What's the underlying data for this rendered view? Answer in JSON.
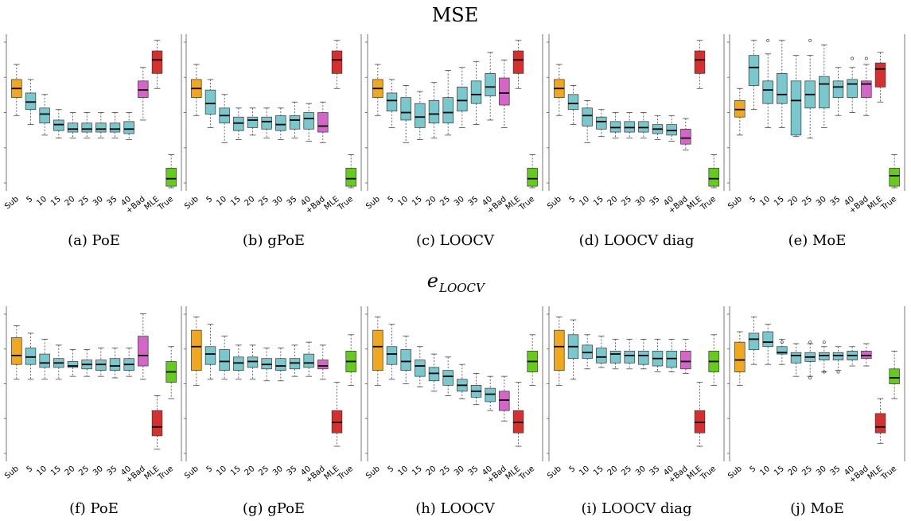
{
  "figure": {
    "row_titles": [
      "MSE",
      "e",
      "LOOCV"
    ],
    "categories": [
      "Sub",
      "5",
      "10",
      "15",
      "20",
      "25",
      "30",
      "35",
      "40",
      "+Bad",
      "MLE",
      "True"
    ],
    "colors": {
      "sub": "#F0A81E",
      "agg": "#78C8CD",
      "bad": "#D665C8",
      "mle": "#D6302E",
      "true": "#66CC1C",
      "median": "#000000",
      "whisker": "#444444",
      "frame": "#777777"
    }
  },
  "captions": [
    "(a) PoE",
    "(b) gPoE",
    "(c) LOOCV",
    "(d) LOOCV diag",
    "(e) MoE",
    "(f) PoE",
    "(g) gPoE",
    "(h) LOOCV",
    "(i) LOOCV diag",
    "(j) MoE"
  ],
  "chart_data": [
    {
      "type": "box",
      "row": "MSE",
      "title": "(a) PoE",
      "ylim": [
        0,
        100
      ],
      "categories": [
        "Sub",
        "5",
        "10",
        "15",
        "20",
        "25",
        "30",
        "35",
        "40",
        "+Bad",
        "MLE",
        "True"
      ],
      "boxes": [
        [
          48,
          60,
          66,
          72,
          82
        ],
        [
          42,
          52,
          57,
          63,
          72
        ],
        [
          35,
          43,
          49,
          53,
          62
        ],
        [
          33,
          38,
          42,
          45,
          52
        ],
        [
          33,
          37,
          39,
          43,
          50
        ],
        [
          33,
          37,
          39,
          43,
          50
        ],
        [
          33,
          37,
          39,
          43,
          50
        ],
        [
          33,
          37,
          39,
          43,
          50
        ],
        [
          32,
          36,
          39,
          44,
          50
        ],
        [
          45,
          60,
          65,
          71,
          80
        ],
        [
          66,
          76,
          85,
          91,
          98
        ],
        [
          0,
          1,
          6,
          13,
          22
        ]
      ],
      "outliers": []
    },
    {
      "type": "box",
      "row": "MSE",
      "title": "(b) gPoE",
      "ylim": [
        0,
        100
      ],
      "categories": [
        "Sub",
        "5",
        "10",
        "15",
        "20",
        "25",
        "30",
        "35",
        "40",
        "+Bad",
        "MLE",
        "True"
      ],
      "boxes": [
        [
          48,
          60,
          66,
          72,
          82
        ],
        [
          40,
          49,
          56,
          65,
          72
        ],
        [
          30,
          43,
          48,
          53,
          62
        ],
        [
          32,
          38,
          43,
          47,
          53
        ],
        [
          35,
          40,
          45,
          47,
          53
        ],
        [
          33,
          39,
          44,
          47,
          53
        ],
        [
          32,
          38,
          42,
          48,
          53
        ],
        [
          33,
          39,
          45,
          48,
          57
        ],
        [
          31,
          39,
          46,
          50,
          56
        ],
        [
          30,
          37,
          41,
          50,
          57
        ],
        [
          66,
          76,
          85,
          91,
          98
        ],
        [
          0,
          1,
          6,
          13,
          22
        ]
      ],
      "outliers": []
    },
    {
      "type": "box",
      "row": "MSE",
      "title": "(c) LOOCV",
      "ylim": [
        0,
        100
      ],
      "categories": [
        "Sub",
        "5",
        "10",
        "15",
        "20",
        "25",
        "30",
        "35",
        "40",
        "+Bad",
        "MLE",
        "True"
      ],
      "boxes": [
        [
          48,
          60,
          66,
          72,
          82
        ],
        [
          40,
          51,
          58,
          63,
          72
        ],
        [
          30,
          45,
          50,
          60,
          68
        ],
        [
          32,
          40,
          47,
          56,
          64
        ],
        [
          33,
          43,
          49,
          58,
          70
        ],
        [
          35,
          43,
          50,
          60,
          78
        ],
        [
          40,
          51,
          58,
          67,
          80
        ],
        [
          42,
          56,
          62,
          71,
          84
        ],
        [
          45,
          61,
          67,
          76,
          90
        ],
        [
          40,
          55,
          63,
          73,
          85
        ],
        [
          66,
          76,
          85,
          91,
          98
        ],
        [
          0,
          1,
          6,
          13,
          22
        ]
      ],
      "outliers": []
    },
    {
      "type": "box",
      "row": "MSE",
      "title": "(d) LOOCV diag",
      "ylim": [
        0,
        100
      ],
      "categories": [
        "Sub",
        "5",
        "10",
        "15",
        "20",
        "25",
        "30",
        "35",
        "40",
        "+Bad",
        "MLE",
        "True"
      ],
      "boxes": [
        [
          48,
          60,
          66,
          72,
          82
        ],
        [
          42,
          52,
          56,
          62,
          68
        ],
        [
          30,
          41,
          48,
          53,
          58
        ],
        [
          34,
          39,
          44,
          47,
          52
        ],
        [
          33,
          37,
          40,
          44,
          50
        ],
        [
          33,
          37,
          40,
          44,
          50
        ],
        [
          33,
          37,
          40,
          44,
          50
        ],
        [
          32,
          36,
          39,
          42,
          48
        ],
        [
          31,
          35,
          38,
          42,
          48
        ],
        [
          25,
          29,
          33,
          39,
          46
        ],
        [
          66,
          76,
          85,
          91,
          98
        ],
        [
          0,
          1,
          6,
          13,
          22
        ]
      ],
      "outliers": []
    },
    {
      "type": "box",
      "row": "MSE",
      "title": "(e) MoE",
      "ylim": [
        0,
        100
      ],
      "categories": [
        "Sub",
        "5",
        "10",
        "15",
        "20",
        "25",
        "30",
        "35",
        "40",
        "+Bad",
        "MLE",
        "True"
      ],
      "boxes": [
        [
          35,
          47,
          52,
          58,
          66
        ],
        [
          52,
          68,
          80,
          88,
          98
        ],
        [
          40,
          56,
          65,
          71,
          89
        ],
        [
          40,
          56,
          62,
          76,
          98
        ],
        [
          34,
          35,
          58,
          71,
          88
        ],
        [
          33,
          53,
          62,
          71,
          88
        ],
        [
          40,
          53,
          69,
          74,
          95
        ],
        [
          48,
          60,
          67,
          71,
          80
        ],
        [
          50,
          60,
          69,
          72,
          80
        ],
        [
          48,
          60,
          69,
          71,
          82
        ],
        [
          57,
          67,
          79,
          83,
          90
        ],
        [
          0,
          1,
          8,
          13,
          22
        ]
      ],
      "outliers": [
        [
          2,
          98
        ],
        [
          5,
          98
        ],
        [
          8,
          86
        ],
        [
          9,
          86
        ]
      ]
    },
    {
      "type": "box",
      "row": "e LOOCV",
      "title": "(f) PoE",
      "ylim": [
        0,
        100
      ],
      "categories": [
        "Sub",
        "5",
        "10",
        "15",
        "20",
        "25",
        "30",
        "35",
        "40",
        "+Bad",
        "MLE",
        "True"
      ],
      "boxes": [
        [
          53,
          63,
          69,
          81,
          89
        ],
        [
          53,
          63,
          68,
          74,
          84
        ],
        [
          53,
          61,
          64,
          70,
          80
        ],
        [
          53,
          61,
          64,
          67,
          76
        ],
        [
          55,
          61,
          62,
          65,
          73
        ],
        [
          55,
          60,
          63,
          66,
          73
        ],
        [
          55,
          59,
          63,
          66,
          74
        ],
        [
          54,
          59,
          62,
          67,
          74
        ],
        [
          55,
          59,
          63,
          67,
          74
        ],
        [
          53,
          62,
          69,
          82,
          97
        ],
        [
          6,
          15,
          21,
          32,
          42
        ],
        [
          40,
          51,
          58,
          65,
          75
        ]
      ],
      "outliers": []
    },
    {
      "type": "box",
      "row": "e LOOCV",
      "title": "(g) gPoE",
      "ylim": [
        0,
        100
      ],
      "categories": [
        "Sub",
        "5",
        "10",
        "15",
        "20",
        "25",
        "30",
        "35",
        "40",
        "+Bad",
        "MLE",
        "True"
      ],
      "boxes": [
        [
          49,
          59,
          75,
          86,
          95
        ],
        [
          53,
          63,
          70,
          75,
          90
        ],
        [
          53,
          59,
          65,
          73,
          82
        ],
        [
          53,
          59,
          64,
          68,
          76
        ],
        [
          53,
          61,
          65,
          68,
          76
        ],
        [
          52,
          60,
          63,
          67,
          74
        ],
        [
          52,
          59,
          62,
          67,
          74
        ],
        [
          55,
          60,
          64,
          67,
          76
        ],
        [
          55,
          61,
          64,
          70,
          78
        ],
        [
          53,
          60,
          62,
          66,
          76
        ],
        [
          8,
          17,
          24,
          32,
          51
        ],
        [
          49,
          58,
          65,
          72,
          83
        ]
      ],
      "outliers": []
    },
    {
      "type": "box",
      "row": "e LOOCV",
      "title": "(h) LOOCV",
      "ylim": [
        0,
        100
      ],
      "categories": [
        "Sub",
        "5",
        "10",
        "15",
        "20",
        "25",
        "30",
        "35",
        "40",
        "+Bad",
        "MLE",
        "True"
      ],
      "boxes": [
        [
          49,
          59,
          75,
          86,
          95
        ],
        [
          53,
          63,
          70,
          75,
          90
        ],
        [
          50,
          59,
          65,
          73,
          82
        ],
        [
          48,
          55,
          62,
          66,
          75
        ],
        [
          45,
          52,
          57,
          61,
          70
        ],
        [
          42,
          49,
          55,
          59,
          68
        ],
        [
          40,
          45,
          49,
          53,
          63
        ],
        [
          36,
          41,
          45,
          49,
          57
        ],
        [
          32,
          38,
          43,
          47,
          55
        ],
        [
          25,
          32,
          39,
          45,
          55
        ],
        [
          8,
          17,
          24,
          32,
          51
        ],
        [
          49,
          58,
          65,
          72,
          83
        ]
      ],
      "outliers": []
    },
    {
      "type": "box",
      "row": "e LOOCV",
      "title": "(i) LOOCV diag",
      "ylim": [
        0,
        100
      ],
      "categories": [
        "Sub",
        "5",
        "10",
        "15",
        "20",
        "25",
        "30",
        "35",
        "40",
        "+Bad",
        "MLE",
        "True"
      ],
      "boxes": [
        [
          49,
          59,
          75,
          86,
          95
        ],
        [
          53,
          67,
          75,
          83,
          93
        ],
        [
          60,
          67,
          71,
          76,
          83
        ],
        [
          61,
          64,
          68,
          74,
          82
        ],
        [
          60,
          64,
          70,
          72,
          80
        ],
        [
          60,
          64,
          69,
          72,
          80
        ],
        [
          60,
          63,
          69,
          72,
          80
        ],
        [
          58,
          62,
          67,
          72,
          80
        ],
        [
          58,
          61,
          67,
          72,
          80
        ],
        [
          57,
          60,
          65,
          72,
          80
        ],
        [
          8,
          17,
          24,
          32,
          51
        ],
        [
          49,
          58,
          65,
          72,
          83
        ]
      ],
      "outliers": []
    },
    {
      "type": "box",
      "row": "e LOOCV",
      "title": "(j) MoE",
      "ylim": [
        0,
        100
      ],
      "categories": [
        "Sub",
        "5",
        "10",
        "15",
        "20",
        "25",
        "30",
        "35",
        "40",
        "+Bad",
        "MLE",
        "True"
      ],
      "boxes": [
        [
          49,
          58,
          66,
          78,
          85
        ],
        [
          63,
          73,
          80,
          84,
          95
        ],
        [
          63,
          75,
          78,
          85,
          90
        ],
        [
          63,
          70,
          71,
          75,
          80
        ],
        [
          55,
          64,
          69,
          71,
          77
        ],
        [
          55,
          65,
          68,
          71,
          77
        ],
        [
          58,
          66,
          69,
          71,
          75
        ],
        [
          59,
          66,
          69,
          71,
          75
        ],
        [
          62,
          66,
          69,
          72,
          75
        ],
        [
          62,
          67,
          69,
          72,
          77
        ],
        [
          10,
          17,
          21,
          30,
          40
        ],
        [
          40,
          50,
          54,
          60,
          72
        ]
      ],
      "outliers": [
        [
          3,
          78
        ],
        [
          5,
          78
        ],
        [
          5,
          54
        ],
        [
          6,
          78
        ],
        [
          6,
          58
        ],
        [
          7,
          58
        ]
      ]
    }
  ]
}
